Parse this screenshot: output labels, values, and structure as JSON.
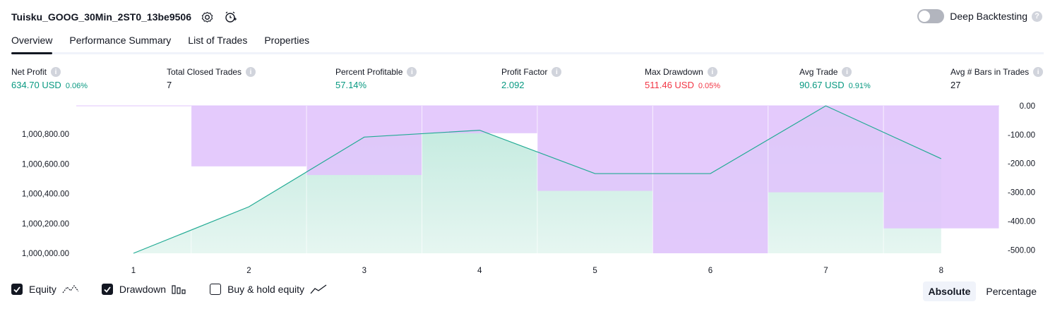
{
  "header": {
    "title": "Tuisku_GOOG_30Min_2ST0_13be9506",
    "deep_backtesting_label": "Deep Backtesting",
    "deep_backtesting_enabled": false
  },
  "tabs": [
    {
      "label": "Overview",
      "active": true
    },
    {
      "label": "Performance Summary",
      "active": false
    },
    {
      "label": "List of Trades",
      "active": false
    },
    {
      "label": "Properties",
      "active": false
    }
  ],
  "metrics": [
    {
      "label": "Net Profit",
      "value": "634.70 USD",
      "pct": "0.06%",
      "color": "green"
    },
    {
      "label": "Total Closed Trades",
      "value": "7",
      "pct": "",
      "color": "plain"
    },
    {
      "label": "Percent Profitable",
      "value": "57.14%",
      "pct": "",
      "color": "green"
    },
    {
      "label": "Profit Factor",
      "value": "2.092",
      "pct": "",
      "color": "green"
    },
    {
      "label": "Max Drawdown",
      "value": "511.46 USD",
      "pct": "0.05%",
      "color": "red"
    },
    {
      "label": "Avg Trade",
      "value": "90.67 USD",
      "pct": "0.91%",
      "color": "green"
    },
    {
      "label": "Avg # Bars in Trades",
      "value": "27",
      "pct": "",
      "color": "plain"
    }
  ],
  "chart_data": {
    "type": "line",
    "x": [
      1,
      2,
      3,
      4,
      5,
      6,
      7,
      8
    ],
    "x_tick_labels": [
      "1",
      "2",
      "3",
      "4",
      "5",
      "6",
      "7",
      "8"
    ],
    "series": [
      {
        "name": "Equity",
        "axis": "left",
        "values": [
          1000000,
          1000312,
          1000780,
          1000826,
          1000535,
          1000535,
          1000990,
          1000635
        ]
      },
      {
        "name": "Drawdown",
        "axis": "right",
        "type": "bar",
        "values": [
          0,
          -210,
          -240,
          -95,
          -295,
          -511.46,
          -300,
          -425
        ]
      }
    ],
    "left_axis": {
      "ylim": [
        1000000,
        1000990
      ],
      "ticks": [
        "1,000,800.00",
        "1,000,600.00",
        "1,000,400.00",
        "1,000,200.00",
        "1,000,000.00"
      ],
      "tick_values": [
        1000800,
        1000600,
        1000400,
        1000200,
        1000000
      ]
    },
    "right_axis": {
      "ylim": [
        -511.46,
        0
      ],
      "ticks": [
        "0.00",
        "-100.00",
        "-200.00",
        "-300.00",
        "-400.00",
        "-500.00"
      ],
      "tick_values": [
        0,
        -100,
        -200,
        -300,
        -400,
        -500
      ]
    },
    "colors": {
      "equity_line": "#22ab94",
      "equity_fill": "#cbeee5",
      "drawdown": "#e1c4fc",
      "overlap": "#b8b2e8"
    }
  },
  "footer": {
    "checkboxes": [
      {
        "label": "Equity",
        "checked": true,
        "icon": "equity-line-icon"
      },
      {
        "label": "Drawdown",
        "checked": true,
        "icon": "drawdown-bars-icon"
      },
      {
        "label": "Buy & hold equity",
        "checked": false,
        "icon": "buy-hold-line-icon"
      }
    ],
    "segments": [
      {
        "label": "Absolute",
        "active": true
      },
      {
        "label": "Percentage",
        "active": false
      }
    ]
  }
}
